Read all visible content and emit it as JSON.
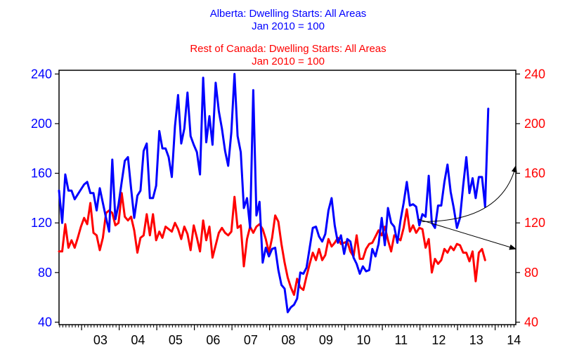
{
  "chart_data": {
    "type": "line",
    "titles": {
      "alberta": {
        "line1": "Alberta: Dwelling Starts: All Areas",
        "line2": "Jan 2010 = 100",
        "color": "#0000ff"
      },
      "rest": {
        "line1": "Rest of Canada: Dwelling Starts: All Areas",
        "line2": "Jan 2010 = 100",
        "color": "#ff0000"
      }
    },
    "x_ticks": [
      "03",
      "04",
      "05",
      "06",
      "07",
      "08",
      "09",
      "10",
      "11",
      "12",
      "13",
      "14"
    ],
    "x_range": [
      2002.4,
      2014.55
    ],
    "left_axis": {
      "ylim": [
        38,
        243
      ],
      "ticks": [
        "40",
        "80",
        "120",
        "160",
        "200",
        "240"
      ],
      "color": "#0000ff"
    },
    "right_axis": {
      "ylim": [
        38,
        243
      ],
      "ticks": [
        "40",
        "80",
        "120",
        "160",
        "200",
        "240"
      ],
      "color": "#ff0000"
    },
    "grid": false,
    "series": [
      {
        "name": "Alberta: Dwelling Starts: All Areas",
        "color": "#0000ff",
        "x_start": 2002.4,
        "x_step": 0.0833333,
        "values": [
          146,
          120,
          159,
          146,
          146,
          139,
          143,
          147,
          151,
          153,
          144,
          144,
          130,
          148,
          136,
          124,
          113,
          171,
          123,
          135,
          153,
          170,
          173,
          148,
          124,
          142,
          146,
          178,
          184,
          140,
          140,
          150,
          194,
          180,
          180,
          173,
          157,
          198,
          223,
          184,
          196,
          225,
          190,
          183,
          177,
          159,
          237,
          185,
          206,
          183,
          233,
          210,
          196,
          178,
          166,
          193,
          240,
          190,
          177,
          132,
          140,
          116,
          227,
          126,
          137,
          88,
          100,
          93,
          99,
          100,
          82,
          70,
          67,
          48,
          52,
          54,
          59,
          80,
          79,
          84,
          100,
          116,
          117,
          109,
          105,
          111,
          130,
          140,
          118,
          104,
          110,
          95,
          107,
          105,
          92,
          87,
          79,
          85,
          81,
          82,
          99,
          93,
          103,
          124,
          102,
          132,
          120,
          117,
          104,
          122,
          136,
          153,
          134,
          135,
          133,
          118,
          127,
          125,
          158,
          120,
          116,
          134,
          134,
          153,
          167,
          145,
          132,
          116,
          124,
          150,
          173,
          144,
          156,
          140,
          157,
          157,
          133,
          212
        ]
      },
      {
        "name": "Rest of Canada: Dwelling Starts: All Areas",
        "color": "#ff0000",
        "x_start": 2002.4,
        "x_step": 0.0833333,
        "values": [
          97,
          97,
          119,
          100,
          106,
          100,
          108,
          117,
          124,
          119,
          136,
          112,
          110,
          98,
          108,
          128,
          130,
          128,
          118,
          120,
          144,
          125,
          122,
          125,
          114,
          96,
          108,
          110,
          127,
          110,
          127,
          106,
          113,
          108,
          117,
          115,
          113,
          120,
          115,
          107,
          117,
          111,
          98,
          118,
          108,
          97,
          122,
          106,
          117,
          92,
          102,
          112,
          116,
          112,
          110,
          113,
          141,
          116,
          118,
          85,
          107,
          117,
          112,
          117,
          119,
          115,
          107,
          96,
          108,
          126,
          121,
          103,
          88,
          76,
          68,
          62,
          75,
          68,
          66,
          77,
          87,
          96,
          90,
          99,
          90,
          94,
          107,
          101,
          104,
          108,
          103,
          104,
          105,
          97,
          93,
          110,
          91,
          91,
          99,
          103,
          104,
          109,
          114,
          110,
          117,
          106,
          97,
          110,
          108,
          106,
          116,
          131,
          113,
          118,
          112,
          116,
          115,
          100,
          107,
          80,
          91,
          87,
          90,
          99,
          96,
          101,
          98,
          103,
          102,
          96,
          96,
          89,
          97,
          73,
          96,
          99,
          90
        ]
      }
    ],
    "annotations": [
      {
        "type": "arrow",
        "direction": "up",
        "from": [
          2012.05,
          121
        ],
        "to": [
          2014.55,
          166
        ],
        "color": "#000000"
      },
      {
        "type": "arrow",
        "direction": "down",
        "from": [
          2011.95,
          123
        ],
        "to": [
          2014.55,
          99
        ],
        "color": "#000000"
      }
    ]
  }
}
